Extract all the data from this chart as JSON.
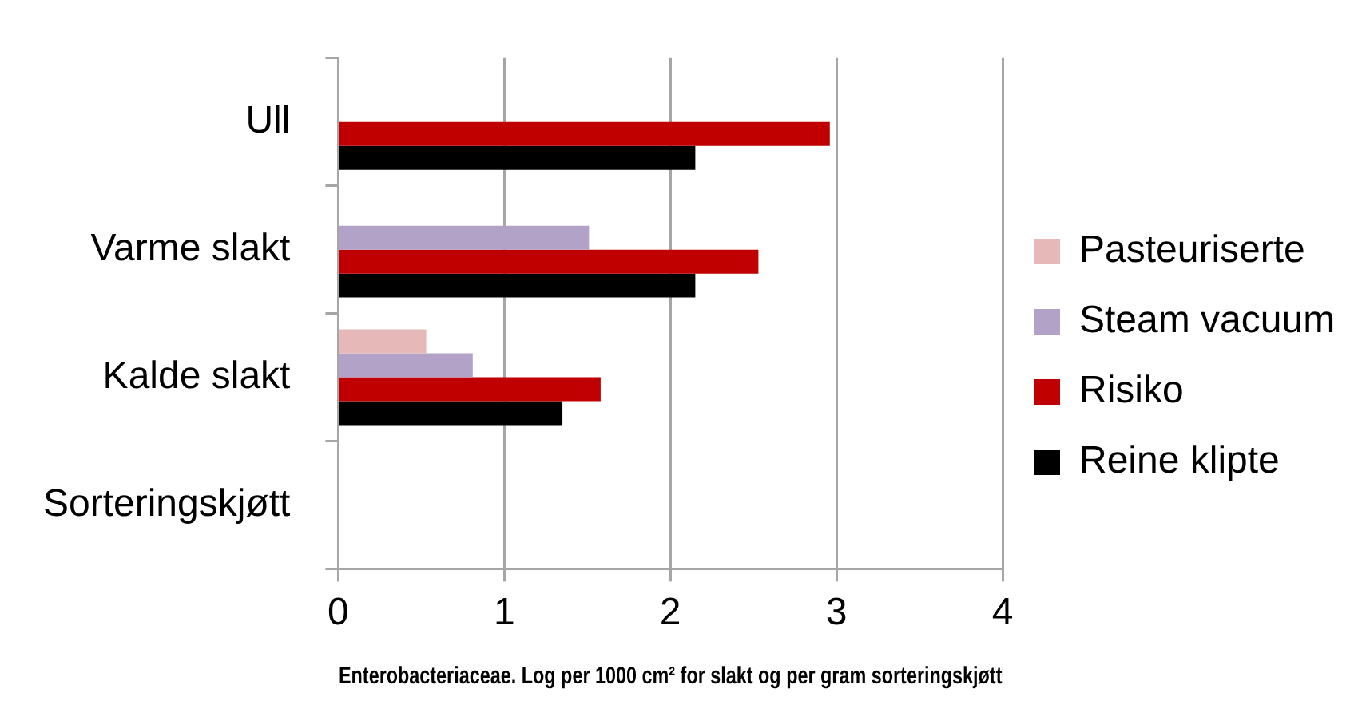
{
  "chart_data": {
    "type": "bar",
    "orientation": "horizontal",
    "xlabel": "Enterobacteriaceae. Log per 1000 cm² for slakt og per gram sorteringskjøtt",
    "categories": [
      "Ull",
      "Varme slakt",
      "Kalde slakt",
      "Sorteringskjøtt"
    ],
    "series": [
      {
        "name": "Pasteuriserte",
        "color": "#e6b9b8",
        "values": [
          null,
          null,
          0.53,
          null
        ]
      },
      {
        "name": "Steam vacuum",
        "color": "#b3a2c7",
        "values": [
          null,
          1.51,
          0.81,
          null
        ]
      },
      {
        "name": "Risiko",
        "color": "#c00000",
        "values": [
          2.96,
          2.53,
          1.58,
          null
        ]
      },
      {
        "name": "Reine klipte",
        "color": "#000000",
        "values": [
          2.15,
          2.15,
          1.35,
          null
        ]
      }
    ],
    "xlim": [
      0,
      4
    ],
    "xticks": [
      0,
      1,
      2,
      3,
      4
    ],
    "grid": "x",
    "legend": "right"
  }
}
